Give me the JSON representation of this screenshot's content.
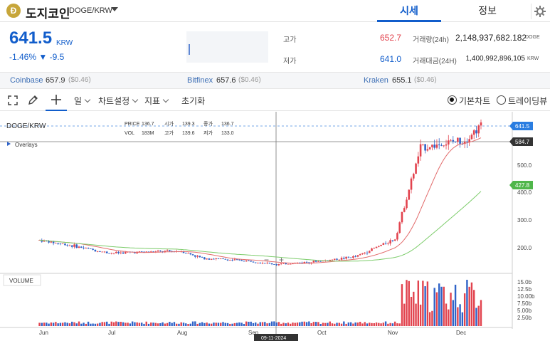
{
  "header": {
    "coin_logo_letter": "Đ",
    "coin_name": "도지코인",
    "pair": "DOGE/KRW",
    "tabs": [
      "시세",
      "정보"
    ],
    "active_tab": "시세"
  },
  "price": {
    "current": "641.5",
    "unit": "KRW",
    "change": "-1.46% ▼ -9.5",
    "high_label": "고가",
    "high": "652.7",
    "low_label": "저가",
    "low": "641.0",
    "volume_label": "거래량(24h)",
    "volume": "2,148,937,682.182",
    "volume_unit": "DOGE",
    "amount_label": "거래대금(24H)",
    "amount": "1,400,992,896,105",
    "amount_unit": "KRW"
  },
  "exchanges": [
    {
      "name": "Coinbase",
      "price": "657.9",
      "diff": "($0.46)"
    },
    {
      "name": "Bitfinex",
      "price": "657.6",
      "diff": "($0.46)"
    },
    {
      "name": "Kraken",
      "price": "655.1",
      "diff": "($0.46)"
    }
  ],
  "toolbar": {
    "interval": "일",
    "chart_settings": "차트설정",
    "indicators": "지표",
    "reset": "초기화",
    "view_basic": "기본차트",
    "view_tradingview": "트레이딩뷰"
  },
  "chart": {
    "symbol": "DOGE/KRW",
    "overlays": "Overlays",
    "legend": {
      "price_label": "PRICE",
      "price": "136.7",
      "open_label": "시가",
      "open": "139.3",
      "close_label": "종가",
      "close": "136.7",
      "vol_label": "VOL",
      "vol": "183M",
      "high_label": "고가",
      "high": "139.6",
      "low_label": "저가",
      "low": "133.0"
    },
    "price_ticks": [
      "500.0",
      "400.0",
      "300.0",
      "200.0"
    ],
    "price_badges": {
      "current": "641.5",
      "crosshair": "584.7",
      "ma": "427.8"
    },
    "volume_label": "VOLUME",
    "volume_ticks": [
      "15.0b",
      "12.5b",
      "10.00b",
      "7.50b",
      "5.00b",
      "2.50b"
    ],
    "months": [
      "Jun",
      "Jul",
      "Aug",
      "Sep",
      "Oct",
      "Nov",
      "Dec"
    ],
    "crosshair_date": "09-11-2024",
    "zoom_minus": "−",
    "zoom_plus": "+",
    "colors": {
      "up": "#e2434e",
      "down": "#2f63c8",
      "ma_short": "#e26b6b",
      "ma_long": "#7ccc6a",
      "current_badge": "#2a7de1",
      "crosshair_badge": "#333333",
      "ma_badge": "#4fb64a"
    }
  },
  "chart_data": {
    "type": "candlestick",
    "ylim": [
      130,
      680
    ],
    "current_price": 641.5,
    "candles_approx_close": [
      {
        "x": "2024-06-01",
        "close": 225
      },
      {
        "x": "2024-06-15",
        "close": 205
      },
      {
        "x": "2024-07-01",
        "close": 178
      },
      {
        "x": "2024-07-15",
        "close": 182
      },
      {
        "x": "2024-08-01",
        "close": 185
      },
      {
        "x": "2024-08-10",
        "close": 160
      },
      {
        "x": "2024-09-01",
        "close": 148
      },
      {
        "x": "2024-09-11",
        "close": 136.7
      },
      {
        "x": "2024-10-01",
        "close": 150
      },
      {
        "x": "2024-10-15",
        "close": 165
      },
      {
        "x": "2024-11-01",
        "close": 230
      },
      {
        "x": "2024-11-12",
        "close": 560
      },
      {
        "x": "2024-12-01",
        "close": 590
      },
      {
        "x": "2024-12-08",
        "close": 641.5
      }
    ]
  }
}
